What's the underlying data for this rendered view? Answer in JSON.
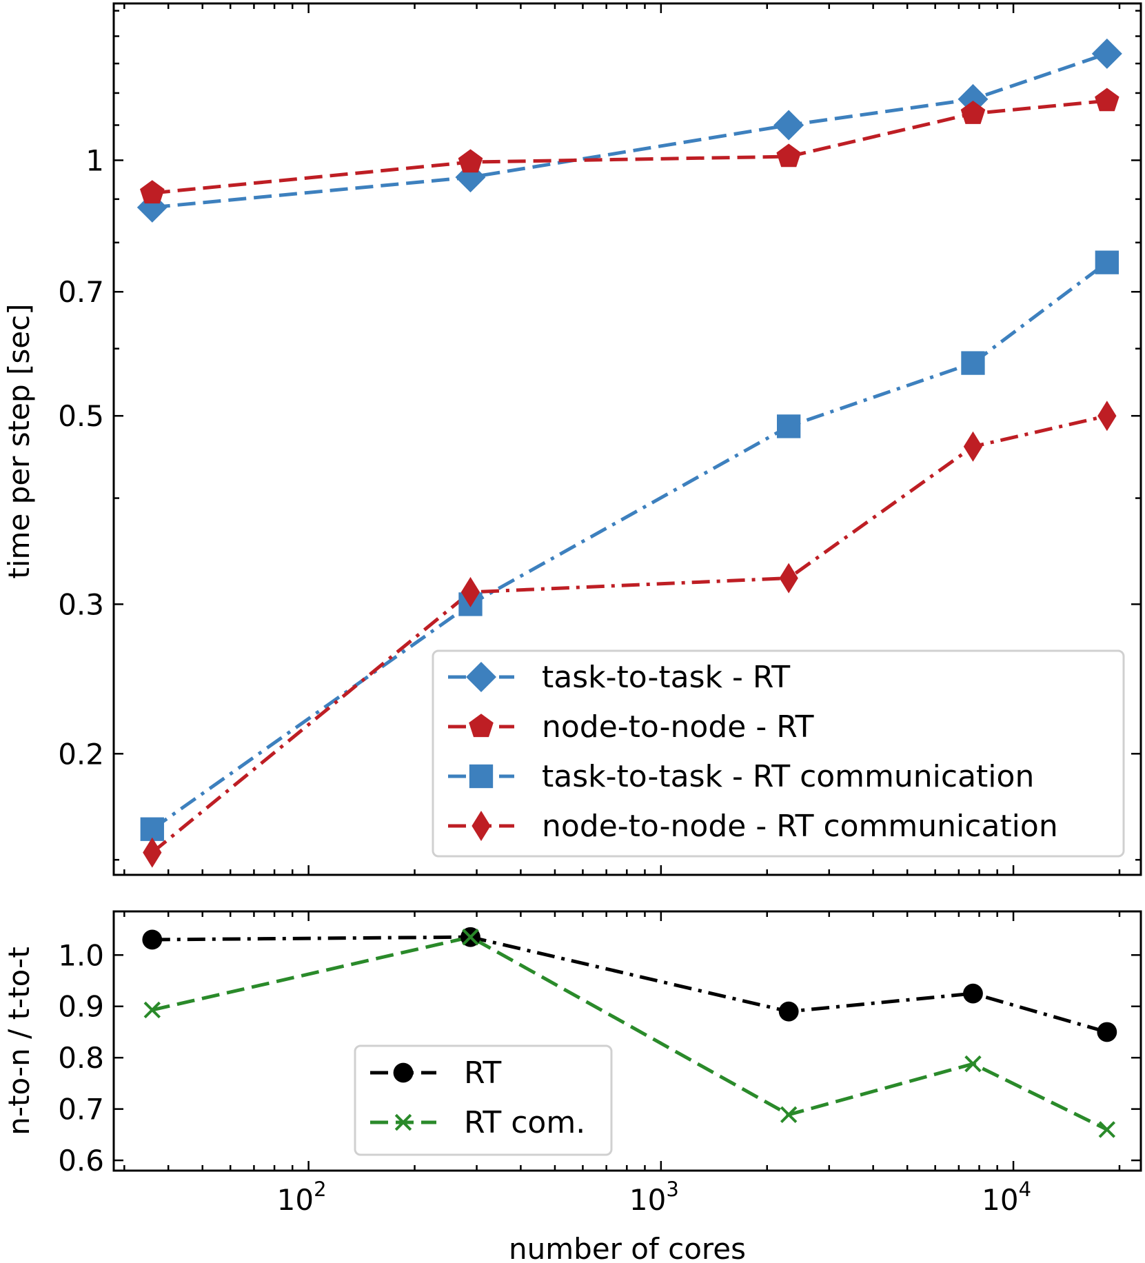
{
  "chart_data": [
    {
      "type": "line",
      "xscale": "log",
      "yscale": "log",
      "xlim": [
        28,
        23000
      ],
      "ylim": [
        0.144,
        1.53
      ],
      "ylabel": "time per step [sec]",
      "yticks": [
        0.2,
        0.3,
        0.5,
        0.7,
        1
      ],
      "ytick_labels": [
        "0.2",
        "0.3",
        "0.5",
        "0.7",
        "1"
      ],
      "legend_position": "lower-right",
      "x": [
        36,
        288,
        2304,
        7680,
        18432
      ],
      "series": [
        {
          "name": "task-to-task - RT",
          "values": [
            0.88,
            0.955,
            1.1,
            1.18,
            1.335
          ],
          "color": "#3d80be",
          "linestyle": "dashed",
          "marker": "diamond"
        },
        {
          "name": "node-to-node - RT",
          "values": [
            0.915,
            0.995,
            1.01,
            1.135,
            1.175
          ],
          "color": "#be1e24",
          "linestyle": "dashed",
          "marker": "pentagon"
        },
        {
          "name": "task-to-task - RT communication",
          "values": [
            0.163,
            0.3,
            0.486,
            0.577,
            0.758
          ],
          "color": "#3d80be",
          "linestyle": "dashdot",
          "marker": "square"
        },
        {
          "name": "node-to-node - RT communication",
          "values": [
            0.153,
            0.31,
            0.322,
            0.46,
            0.5
          ],
          "color": "#be1e24",
          "linestyle": "dashdot",
          "marker": "thin_diamond"
        }
      ]
    },
    {
      "type": "line",
      "xscale": "log",
      "xlim": [
        28,
        23000
      ],
      "ylim": [
        0.58,
        1.085
      ],
      "xlabel": "number of cores",
      "ylabel": "n-to-n / t-to-t",
      "xticks": [
        100,
        1000,
        10000
      ],
      "xtick_labels": [
        {
          "base": "10",
          "exp": "2"
        },
        {
          "base": "10",
          "exp": "3"
        },
        {
          "base": "10",
          "exp": "4"
        }
      ],
      "yticks": [
        0.6,
        0.7,
        0.8,
        0.9,
        1.0
      ],
      "ytick_labels": [
        "0.6",
        "0.7",
        "0.8",
        "0.9",
        "1.0"
      ],
      "legend_position": "lower-center",
      "x": [
        36,
        288,
        2304,
        7680,
        18432
      ],
      "series": [
        {
          "name": "RT",
          "values": [
            1.03,
            1.035,
            0.89,
            0.925,
            0.85
          ],
          "color": "#000000",
          "linestyle": "dashdot",
          "marker": "circle"
        },
        {
          "name": "RT com.",
          "values": [
            0.893,
            1.035,
            0.689,
            0.788,
            0.66
          ],
          "color": "#2a8a2a",
          "linestyle": "dashed",
          "marker": "x"
        }
      ]
    }
  ]
}
